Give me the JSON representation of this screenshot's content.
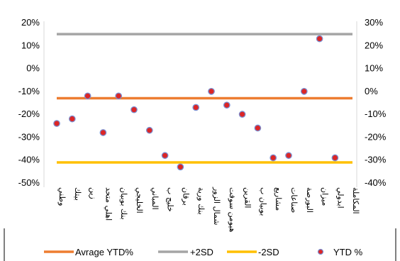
{
  "chart_data": {
    "type": "scatter",
    "title": "",
    "categories": [
      "وطني",
      "بيتك",
      "زين",
      "اهلي متحد",
      "بنك بوبيان",
      "الخليجي",
      "المباني",
      "خليج ب",
      "برقان",
      "بنك ورية",
      "شمال الزور",
      "هيومن سوفت",
      "القرين",
      "بوبيان ب",
      "مشاريع",
      "صناعات",
      "البورصة",
      "ميزان",
      "ابدولي",
      "المكاملة"
    ],
    "left_axis": {
      "ylim": [
        -50,
        20
      ],
      "ticks": [
        20,
        10,
        0,
        -10,
        -20,
        -30,
        -40,
        -50
      ],
      "tick_labels": [
        "20%",
        "10%",
        "0%",
        "-10%",
        "-20%",
        "-30%",
        "-40%",
        "-50%"
      ]
    },
    "right_axis": {
      "ylim": [
        -40,
        30
      ],
      "ticks": [
        30,
        20,
        10,
        0,
        -10,
        -20,
        -30,
        -40
      ],
      "tick_labels": [
        "30%",
        "20%",
        "10%",
        "0%",
        "-10%",
        "-20%",
        "-30%",
        "-40%"
      ]
    },
    "series": [
      {
        "name": "Avrage YTD%",
        "kind": "line",
        "axis": "left",
        "value": -13,
        "color": "#ED7D31"
      },
      {
        "name": "+2SD",
        "kind": "line",
        "axis": "left",
        "value": 15,
        "color": "#A5A5A5"
      },
      {
        "name": "-2SD",
        "kind": "line",
        "axis": "left",
        "value": -41,
        "color": "#FFC000"
      },
      {
        "name": "YTD %",
        "kind": "points",
        "axis": "left",
        "color": "#DC2626",
        "edge_color": "#7B8FD1",
        "values": [
          -24,
          -22,
          -12,
          -28,
          -12,
          -18,
          -27,
          -38,
          -43,
          -17,
          -10,
          -16,
          -20,
          -26,
          -39,
          -38,
          -10,
          13,
          -39,
          null
        ]
      }
    ],
    "legend": {
      "position": "bottom",
      "entries": [
        "Avrage YTD%",
        "+2SD",
        "-2SD",
        "YTD %"
      ]
    },
    "grid": false
  }
}
